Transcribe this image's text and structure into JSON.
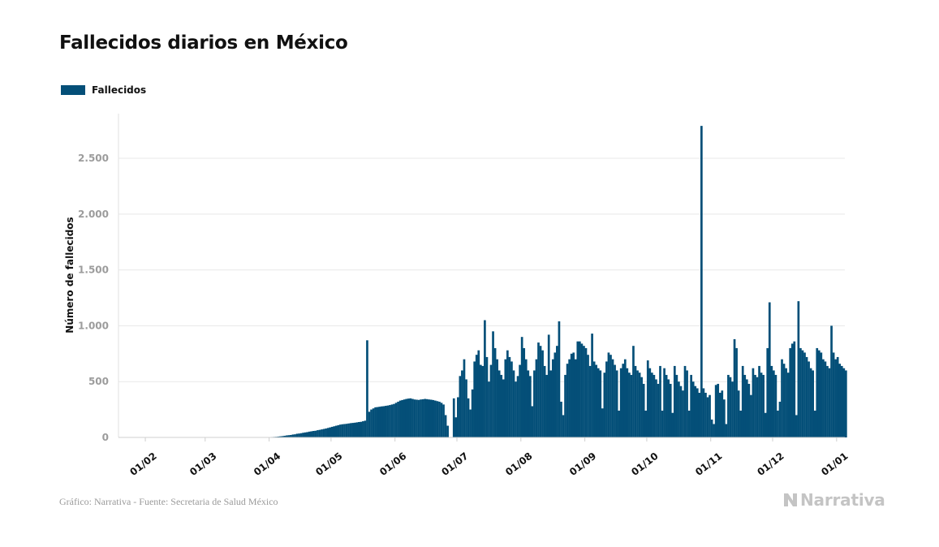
{
  "title": "Fallecidos diarios en México",
  "legend": {
    "label": "Fallecidos",
    "color": "#044f78"
  },
  "footer": {
    "source": "Gráfico: Narrativa - Fuente: Secretaria de Salud México",
    "brand": "Narrativa"
  },
  "chart_data": {
    "type": "bar",
    "title": "Fallecidos diarios en México",
    "xlabel": "",
    "ylabel": "Número de fallecidos",
    "ylim": [
      0,
      2900
    ],
    "yticks": [
      0,
      500,
      1000,
      1500,
      2000,
      2500
    ],
    "ytick_labels": [
      "0",
      "500",
      "1.000",
      "1.500",
      "2.000",
      "2.500"
    ],
    "x_start": "2020-01-19",
    "xticks": [
      "2020-02-01",
      "2020-03-01",
      "2020-04-01",
      "2020-05-01",
      "2020-06-01",
      "2020-07-01",
      "2020-08-01",
      "2020-09-01",
      "2020-10-01",
      "2020-11-01",
      "2020-12-01",
      "2021-01-01"
    ],
    "xtick_labels": [
      "01/02",
      "01/03",
      "01/04",
      "01/05",
      "01/06",
      "01/07",
      "01/08",
      "01/09",
      "01/10",
      "01/11",
      "01/12",
      "01/01"
    ],
    "grid": true,
    "legend_position": "top-left",
    "series": [
      {
        "name": "Fallecidos",
        "color": "#044f78",
        "values": [
          0,
          0,
          0,
          0,
          0,
          0,
          0,
          0,
          0,
          0,
          0,
          0,
          0,
          0,
          0,
          0,
          0,
          0,
          0,
          0,
          0,
          0,
          0,
          0,
          0,
          0,
          0,
          0,
          0,
          0,
          0,
          0,
          0,
          0,
          0,
          0,
          0,
          0,
          0,
          0,
          0,
          0,
          0,
          0,
          0,
          0,
          0,
          0,
          0,
          0,
          0,
          0,
          0,
          0,
          0,
          0,
          0,
          0,
          0,
          0,
          0,
          0,
          0,
          0,
          0,
          0,
          0,
          0,
          0,
          0,
          0,
          0,
          2,
          3,
          4,
          5,
          6,
          8,
          10,
          12,
          15,
          18,
          20,
          22,
          26,
          28,
          33,
          35,
          38,
          42,
          45,
          48,
          52,
          55,
          58,
          60,
          65,
          68,
          72,
          76,
          80,
          85,
          90,
          95,
          100,
          105,
          110,
          115,
          118,
          120,
          122,
          125,
          128,
          130,
          132,
          135,
          138,
          140,
          145,
          150,
          870,
          230,
          250,
          260,
          270,
          272,
          275,
          278,
          280,
          283,
          286,
          290,
          295,
          300,
          310,
          320,
          330,
          335,
          340,
          345,
          348,
          350,
          345,
          340,
          338,
          336,
          340,
          342,
          345,
          343,
          340,
          338,
          335,
          330,
          325,
          320,
          310,
          295,
          200,
          105,
          0,
          0,
          350,
          180,
          360,
          550,
          600,
          700,
          520,
          350,
          250,
          430,
          680,
          740,
          780,
          650,
          640,
          1050,
          720,
          500,
          650,
          950,
          800,
          700,
          600,
          560,
          520,
          700,
          780,
          720,
          680,
          600,
          500,
          550,
          650,
          900,
          800,
          700,
          600,
          550,
          280,
          600,
          700,
          850,
          820,
          780,
          640,
          560,
          920,
          600,
          700,
          760,
          820,
          1040,
          320,
          200,
          560,
          660,
          700,
          750,
          760,
          700,
          860,
          860,
          840,
          820,
          800,
          740,
          640,
          930,
          680,
          650,
          620,
          600,
          260,
          580,
          680,
          760,
          740,
          700,
          650,
          600,
          240,
          620,
          660,
          700,
          620,
          580,
          560,
          820,
          640,
          600,
          580,
          540,
          480,
          240,
          690,
          620,
          580,
          560,
          520,
          480,
          640,
          240,
          620,
          560,
          520,
          480,
          220,
          640,
          560,
          500,
          460,
          420,
          640,
          600,
          240,
          560,
          500,
          460,
          440,
          400,
          2790,
          440,
          400,
          360,
          380,
          160,
          120,
          470,
          480,
          400,
          420,
          340,
          120,
          560,
          540,
          500,
          880,
          800,
          420,
          240,
          640,
          560,
          520,
          480,
          380,
          620,
          560,
          540,
          640,
          580,
          560,
          220,
          800,
          1210,
          640,
          600,
          560,
          240,
          320,
          700,
          660,
          620,
          580,
          800,
          840,
          860,
          200,
          1220,
          800,
          780,
          760,
          720,
          680,
          620,
          600,
          240,
          800,
          780,
          760,
          700,
          680,
          640,
          620,
          1000,
          760,
          700,
          720,
          660,
          640,
          620,
          600
        ]
      }
    ]
  }
}
